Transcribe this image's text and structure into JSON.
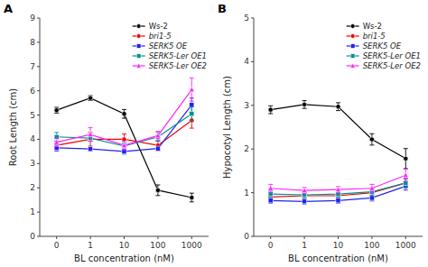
{
  "chart_data": [
    {
      "type": "line",
      "title": "A",
      "xlabel": "BL concentration (nM)",
      "ylabel": "Root Length (cm)",
      "categories": [
        "0",
        "1",
        "10",
        "100",
        "1000"
      ],
      "ylim": [
        0,
        9
      ],
      "yticks": [
        0,
        1,
        2,
        3,
        4,
        5,
        6,
        7,
        8,
        9
      ],
      "grid": false,
      "legend": "upper right",
      "series": [
        {
          "name": "Ws-2",
          "color": "#000000",
          "marker": "circle",
          "values": [
            5.2,
            5.7,
            5.05,
            1.9,
            1.6
          ],
          "errors": [
            0.12,
            0.1,
            0.18,
            0.22,
            0.18
          ]
        },
        {
          "name": "bri1-5",
          "color": "#ee0000",
          "marker": "circle",
          "values": [
            3.75,
            4.0,
            4.0,
            3.75,
            4.78
          ],
          "errors": [
            0.18,
            0.28,
            0.22,
            0.18,
            0.32
          ]
        },
        {
          "name": "SERK5 OE",
          "color": "#2222ee",
          "marker": "square",
          "values": [
            3.65,
            3.6,
            3.5,
            3.62,
            5.42
          ],
          "errors": [
            0.13,
            0.09,
            0.11,
            0.09,
            0.28
          ]
        },
        {
          "name": "SERK5-Ler OE1",
          "color": "#009090",
          "marker": "square",
          "values": [
            4.1,
            4.05,
            3.72,
            4.1,
            5.05
          ],
          "errors": [
            0.18,
            0.13,
            0.13,
            0.18,
            0.28
          ]
        },
        {
          "name": "SERK5-Ler OE2",
          "color": "#ff22ff",
          "marker": "triangle",
          "values": [
            3.88,
            4.2,
            3.75,
            4.15,
            6.05
          ],
          "errors": [
            0.18,
            0.28,
            0.18,
            0.18,
            0.48
          ]
        }
      ]
    },
    {
      "type": "line",
      "title": "B",
      "xlabel": "BL concentration (nM)",
      "ylabel": "Hypocotyl Length (cm)",
      "categories": [
        "0",
        "1",
        "10",
        "100",
        "1000"
      ],
      "ylim": [
        0,
        5
      ],
      "yticks": [
        0,
        1,
        2,
        3,
        4,
        5
      ],
      "grid": false,
      "legend": "upper right",
      "series": [
        {
          "name": "Ws-2",
          "color": "#000000",
          "marker": "circle",
          "values": [
            2.9,
            3.02,
            2.97,
            2.22,
            1.78
          ],
          "errors": [
            0.09,
            0.09,
            0.09,
            0.13,
            0.23
          ]
        },
        {
          "name": "bri1-5",
          "color": "#ee0000",
          "marker": "circle",
          "values": [
            0.9,
            0.93,
            0.93,
            1.0,
            1.22
          ],
          "errors": [
            0.07,
            0.07,
            0.07,
            0.09,
            0.11
          ]
        },
        {
          "name": "SERK5 OE",
          "color": "#2222ee",
          "marker": "square",
          "values": [
            0.82,
            0.8,
            0.82,
            0.88,
            1.15
          ],
          "errors": [
            0.06,
            0.06,
            0.06,
            0.07,
            0.09
          ]
        },
        {
          "name": "SERK5-Ler OE1",
          "color": "#009090",
          "marker": "square",
          "values": [
            0.97,
            0.95,
            0.97,
            1.02,
            1.22
          ],
          "errors": [
            0.07,
            0.07,
            0.07,
            0.09,
            0.09
          ]
        },
        {
          "name": "SERK5-Ler OE2",
          "color": "#ff22ff",
          "marker": "triangle",
          "values": [
            1.1,
            1.05,
            1.07,
            1.1,
            1.4
          ],
          "errors": [
            0.09,
            0.07,
            0.07,
            0.09,
            0.14
          ]
        }
      ]
    }
  ]
}
